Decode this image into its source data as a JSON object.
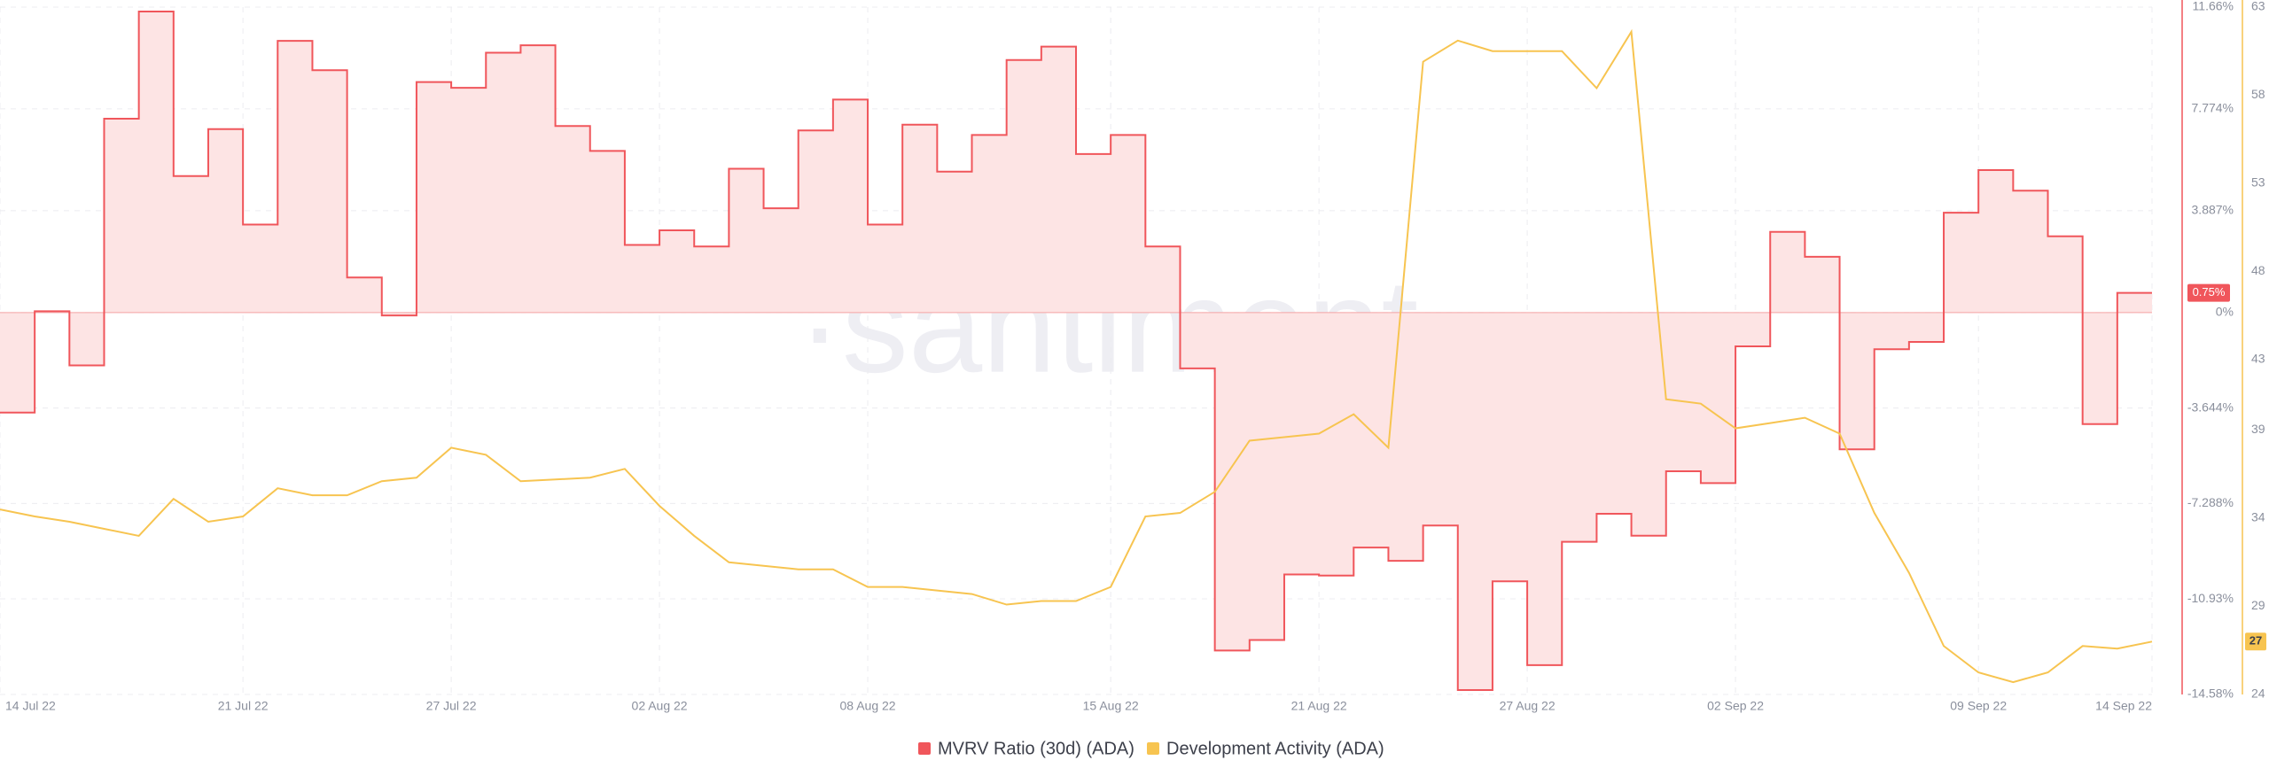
{
  "chart_data": {
    "type": "line",
    "watermark": "·santiment·",
    "x": [
      "2022-07-14",
      "2022-07-15",
      "2022-07-16",
      "2022-07-17",
      "2022-07-18",
      "2022-07-19",
      "2022-07-20",
      "2022-07-21",
      "2022-07-22",
      "2022-07-23",
      "2022-07-24",
      "2022-07-25",
      "2022-07-26",
      "2022-07-27",
      "2022-07-28",
      "2022-07-29",
      "2022-07-30",
      "2022-07-31",
      "2022-08-01",
      "2022-08-02",
      "2022-08-03",
      "2022-08-04",
      "2022-08-05",
      "2022-08-06",
      "2022-08-07",
      "2022-08-08",
      "2022-08-09",
      "2022-08-10",
      "2022-08-11",
      "2022-08-12",
      "2022-08-13",
      "2022-08-14",
      "2022-08-15",
      "2022-08-16",
      "2022-08-17",
      "2022-08-18",
      "2022-08-19",
      "2022-08-20",
      "2022-08-21",
      "2022-08-22",
      "2022-08-23",
      "2022-08-24",
      "2022-08-25",
      "2022-08-26",
      "2022-08-27",
      "2022-08-28",
      "2022-08-29",
      "2022-08-30",
      "2022-08-31",
      "2022-09-01",
      "2022-09-02",
      "2022-09-03",
      "2022-09-04",
      "2022-09-05",
      "2022-09-06",
      "2022-09-07",
      "2022-09-08",
      "2022-09-09",
      "2022-09-10",
      "2022-09-11",
      "2022-09-12",
      "2022-09-13",
      "2022-09-14"
    ],
    "xlim": [
      "2022-07-14",
      "2022-09-14"
    ],
    "xticks": [
      {
        "value": "2022-07-14",
        "label": "14 Jul 22"
      },
      {
        "value": "2022-07-21",
        "label": "21 Jul 22"
      },
      {
        "value": "2022-07-27",
        "label": "27 Jul 22"
      },
      {
        "value": "2022-08-02",
        "label": "02 Aug 22"
      },
      {
        "value": "2022-08-08",
        "label": "08 Aug 22"
      },
      {
        "value": "2022-08-15",
        "label": "15 Aug 22"
      },
      {
        "value": "2022-08-21",
        "label": "21 Aug 22"
      },
      {
        "value": "2022-08-27",
        "label": "27 Aug 22"
      },
      {
        "value": "2022-09-02",
        "label": "02 Sep 22"
      },
      {
        "value": "2022-09-09",
        "label": "09 Sep 22"
      },
      {
        "value": "2022-09-14",
        "label": "14 Sep 22"
      }
    ],
    "ylim": [
      -14.58,
      11.66
    ],
    "yticks": [
      {
        "value": 11.66,
        "label": "11.66%"
      },
      {
        "value": 7.774,
        "label": "7.774%"
      },
      {
        "value": 3.887,
        "label": "3.887%"
      },
      {
        "value": 0,
        "label": "0%"
      },
      {
        "value": -3.644,
        "label": "-3.644%"
      },
      {
        "value": -7.288,
        "label": "-7.288%"
      },
      {
        "value": -10.93,
        "label": "-10.93%"
      },
      {
        "value": -14.58,
        "label": "-14.58%"
      }
    ],
    "y2lim": [
      24,
      63
    ],
    "y2ticks": [
      63,
      58,
      53,
      48,
      43,
      39,
      34,
      29,
      24
    ],
    "grid": true,
    "series": [
      {
        "name": "MVRV Ratio (30d) (ADA)",
        "color": "#f0565b",
        "fill": "#fde4e4",
        "step": true,
        "last_label": "0.75%",
        "values": [
          -3.82,
          0.05,
          -2.02,
          7.4,
          11.49,
          5.21,
          7.0,
          3.36,
          10.37,
          9.25,
          1.34,
          -0.11,
          8.8,
          8.58,
          9.92,
          10.2,
          7.12,
          6.17,
          2.58,
          3.14,
          2.52,
          5.49,
          3.98,
          6.95,
          8.13,
          3.36,
          7.17,
          5.38,
          6.78,
          9.64,
          10.15,
          6.05,
          6.78,
          2.52,
          -2.13,
          -12.9,
          -12.5,
          -10.0,
          -10.04,
          -8.97,
          -9.48,
          -8.13,
          -14.41,
          -10.26,
          -13.46,
          -8.75,
          -7.68,
          -8.52,
          -6.06,
          -6.51,
          -1.29,
          3.08,
          2.13,
          -5.22,
          -1.4,
          -1.12,
          3.81,
          5.44,
          4.65,
          2.91,
          -4.26,
          0.75,
          0.75
        ]
      },
      {
        "name": "Development Activity (ADA)",
        "color": "#f7c450",
        "axis": "y2",
        "values": [
          34.5,
          34.1,
          33.8,
          33.4,
          33.0,
          35.1,
          33.8,
          34.1,
          35.7,
          35.3,
          35.3,
          36.1,
          36.3,
          38.0,
          37.6,
          36.1,
          36.2,
          36.3,
          36.8,
          34.7,
          33.0,
          31.5,
          31.3,
          31.1,
          31.1,
          30.1,
          30.1,
          29.9,
          29.7,
          29.1,
          29.3,
          29.3,
          30.1,
          34.1,
          34.3,
          35.5,
          38.4,
          38.6,
          38.8,
          39.9,
          38.0,
          59.9,
          61.1,
          60.5,
          60.5,
          60.5,
          58.4,
          61.6,
          40.75,
          40.5,
          39.1,
          39.4,
          39.7,
          38.8,
          34.3,
          30.9,
          26.75,
          25.25,
          24.7,
          25.25,
          26.75,
          26.6,
          27
        ]
      }
    ]
  }
}
